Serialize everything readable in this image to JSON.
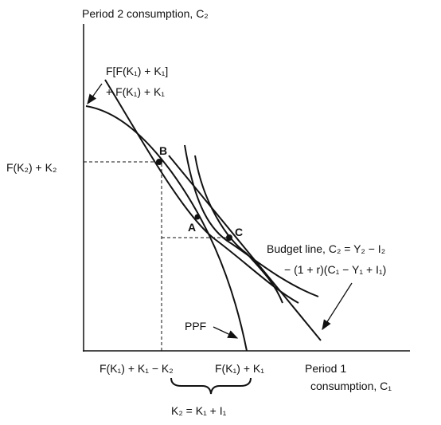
{
  "axes": {
    "y_label": "Period 2 consumption, C₂",
    "x_label_line1": "Period 1",
    "x_label_line2": "consumption, C₁"
  },
  "curve_labels": {
    "upper_line1": "F[F(K₁) + K₁]",
    "upper_line2": "+ F(K₁) + K₁",
    "ppf": "PPF",
    "budget_line1": "Budget line, C₂ = Y₂ − I₂",
    "budget_line2": "− (1 + r)(C₁ − Y₁ + I₁)"
  },
  "points": {
    "b": "B",
    "a": "A",
    "c": "C"
  },
  "ticks": {
    "y_b": "F(K₂) + K₂",
    "x_b": "F(K₁) + K₁ − K₂",
    "x_end": "F(K₁) + K₁"
  },
  "brace_label": "K₂ = K₁ + I₁"
}
